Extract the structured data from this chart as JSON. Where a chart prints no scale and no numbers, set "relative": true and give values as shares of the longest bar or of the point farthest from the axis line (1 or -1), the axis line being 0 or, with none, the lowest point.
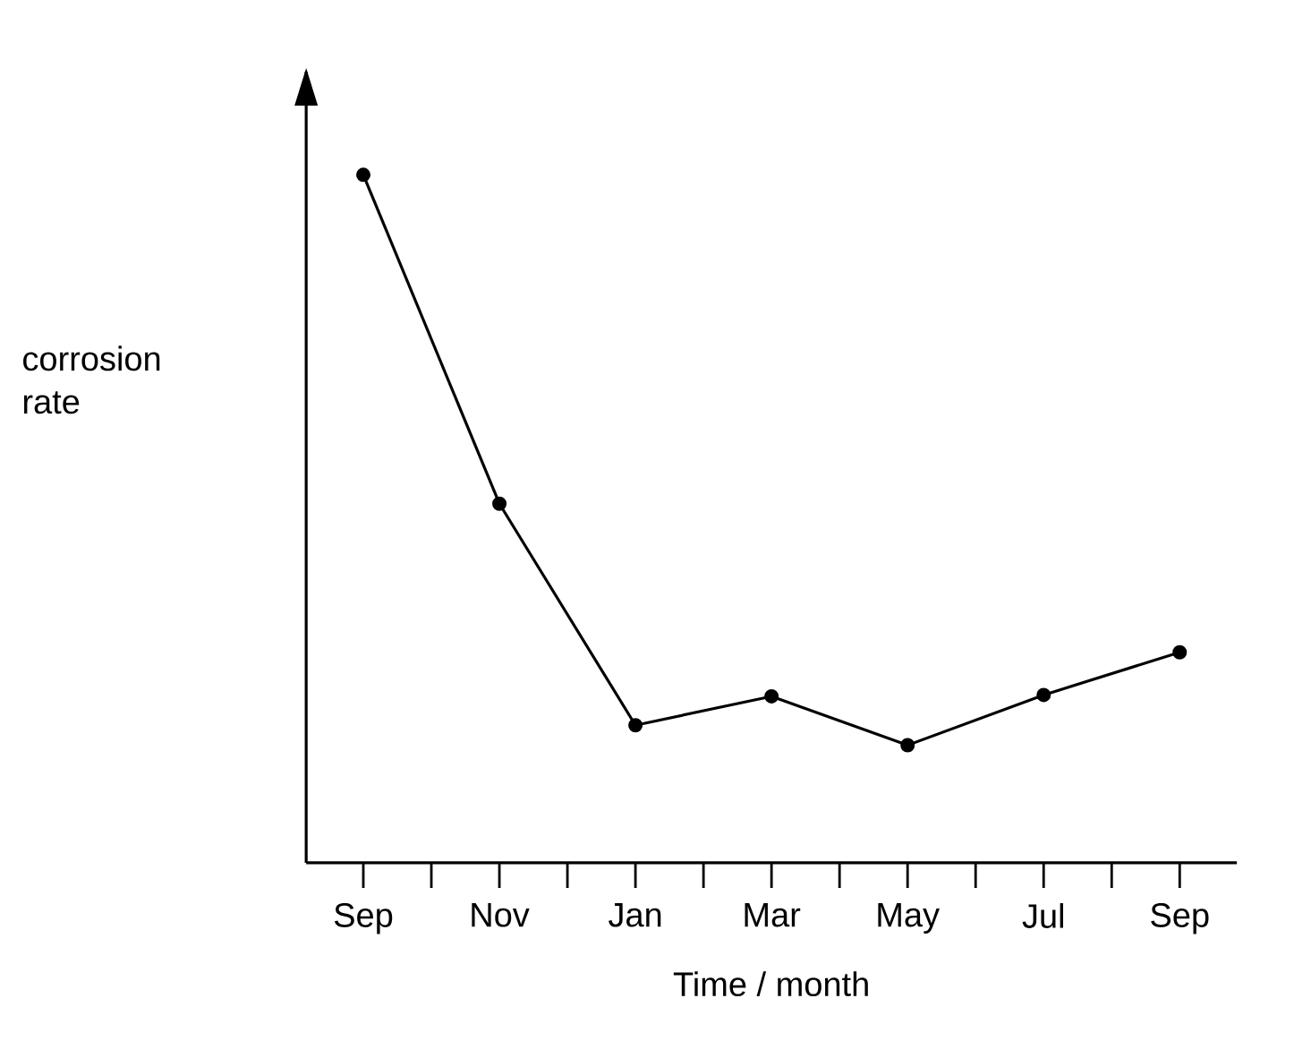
{
  "chart_data": {
    "type": "line",
    "relative": true,
    "xlabel": "Time / month",
    "ylabel": "corrosion rate",
    "categories": [
      "Sep",
      null,
      "Nov",
      null,
      "Jan",
      null,
      "Mar",
      null,
      "May",
      null,
      "Jul",
      null,
      "Sep"
    ],
    "series": [
      {
        "color": "#000000",
        "values": [
          1,
          null,
          0.522,
          null,
          0.2,
          null,
          0.242,
          null,
          0.171,
          null,
          0.244,
          null,
          0.306
        ]
      }
    ],
    "marker": "circle",
    "line_style": "solid",
    "grid": false
  }
}
